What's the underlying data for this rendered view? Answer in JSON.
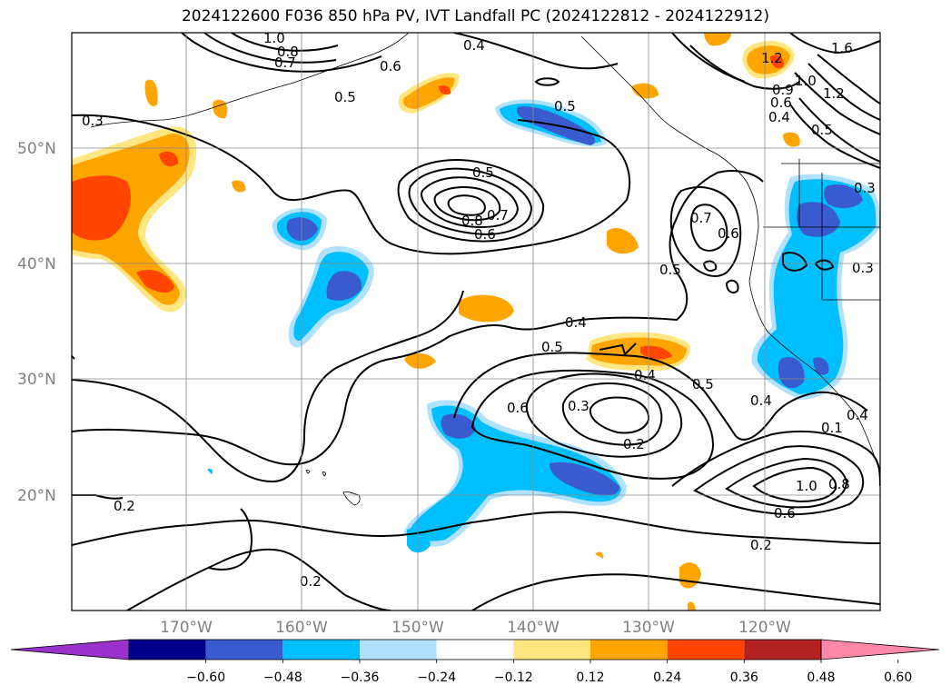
{
  "title": "2024122600 F036 850 hPa PV, IVT Landfall PC (2024122812 - 2024122912)",
  "lat_labels": [
    "50°N",
    "40°N",
    "30°N",
    "20°N"
  ],
  "lon_labels": [
    "170°W",
    "160°W",
    "150°W",
    "140°W",
    "130°W",
    "120°W"
  ],
  "colorbar": {
    "ticks": [
      "−0.60",
      "−0.48",
      "−0.36",
      "−0.24",
      "−0.12",
      "0.12",
      "0.24",
      "0.36",
      "0.48",
      "0.60"
    ],
    "colors": [
      "#9932cc",
      "#00008b",
      "#3a5bd0",
      "#00bfff",
      "#b0e2ff",
      "#ffffff",
      "#ffe680",
      "#ffa500",
      "#ff4500",
      "#b22222",
      "#ff88aa"
    ]
  },
  "contour_labels": [
    "0.3",
    "0.5",
    "0.5",
    "0.4",
    "0.6",
    "0.7",
    "1.0",
    "0.8",
    "1.2",
    "1.6",
    "1.0",
    "0.9",
    "0.6",
    "0.4",
    "0.5",
    "1.2",
    "0.5",
    "0.8",
    "0.6",
    "0.7",
    "0.7",
    "0.6",
    "0.5",
    "0.4",
    "0.5",
    "0.6",
    "0.4",
    "0.3",
    "0.2",
    "0.4",
    "0.5",
    "0.4",
    "0.1",
    "1.0",
    "0.8",
    "0.6",
    "0.2",
    "0.2",
    "0.2",
    "0.3",
    "0.3"
  ]
}
